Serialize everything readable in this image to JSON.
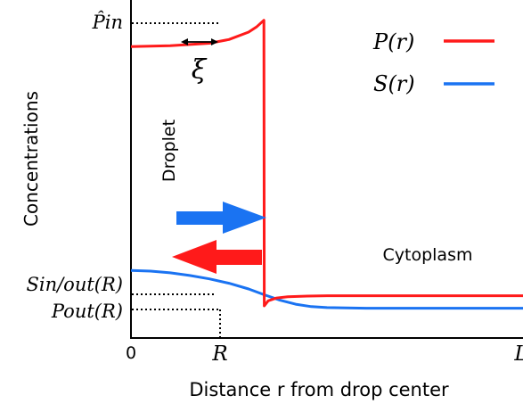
{
  "chart_data": {
    "type": "line",
    "title": "",
    "xlabel": "Distance r from drop center",
    "ylabel": "Concentrations",
    "x_ticks": [
      "0",
      "R",
      "L"
    ],
    "y_ticks": [
      "P̂in",
      "Sin/out(R)",
      "Pout(R)"
    ],
    "legend_placement": "top-right",
    "grid": false,
    "ylim": [
      0,
      1
    ],
    "xlim": [
      0,
      1
    ],
    "series": [
      {
        "name": "P(r)",
        "color": "#ff1a1a",
        "x": [
          0,
          0.1,
          0.2,
          0.25,
          0.3,
          0.32,
          0.339,
          0.34,
          0.35,
          0.37,
          0.4,
          0.45,
          0.5,
          0.6,
          0.8,
          1.0
        ],
        "y": [
          0.862,
          0.865,
          0.872,
          0.883,
          0.905,
          0.92,
          0.94,
          0.095,
          0.11,
          0.118,
          0.122,
          0.124,
          0.125,
          0.125,
          0.125,
          0.125
        ]
      },
      {
        "name": "S(r)",
        "color": "#1a73f2",
        "x": [
          0,
          0.05,
          0.1,
          0.15,
          0.2,
          0.25,
          0.3,
          0.34,
          0.38,
          0.42,
          0.46,
          0.5,
          0.6,
          0.7,
          0.8,
          1.0
        ],
        "y": [
          0.2,
          0.198,
          0.193,
          0.185,
          0.175,
          0.162,
          0.145,
          0.128,
          0.112,
          0.1,
          0.093,
          0.09,
          0.088,
          0.088,
          0.088,
          0.088
        ]
      }
    ],
    "annotations": {
      "xi": "ξ",
      "droplet": "Droplet",
      "cytoplasm": "Cytoplasm",
      "blue_arrow_color": "#1a73f2",
      "red_arrow_color": "#ff1a1a"
    }
  }
}
